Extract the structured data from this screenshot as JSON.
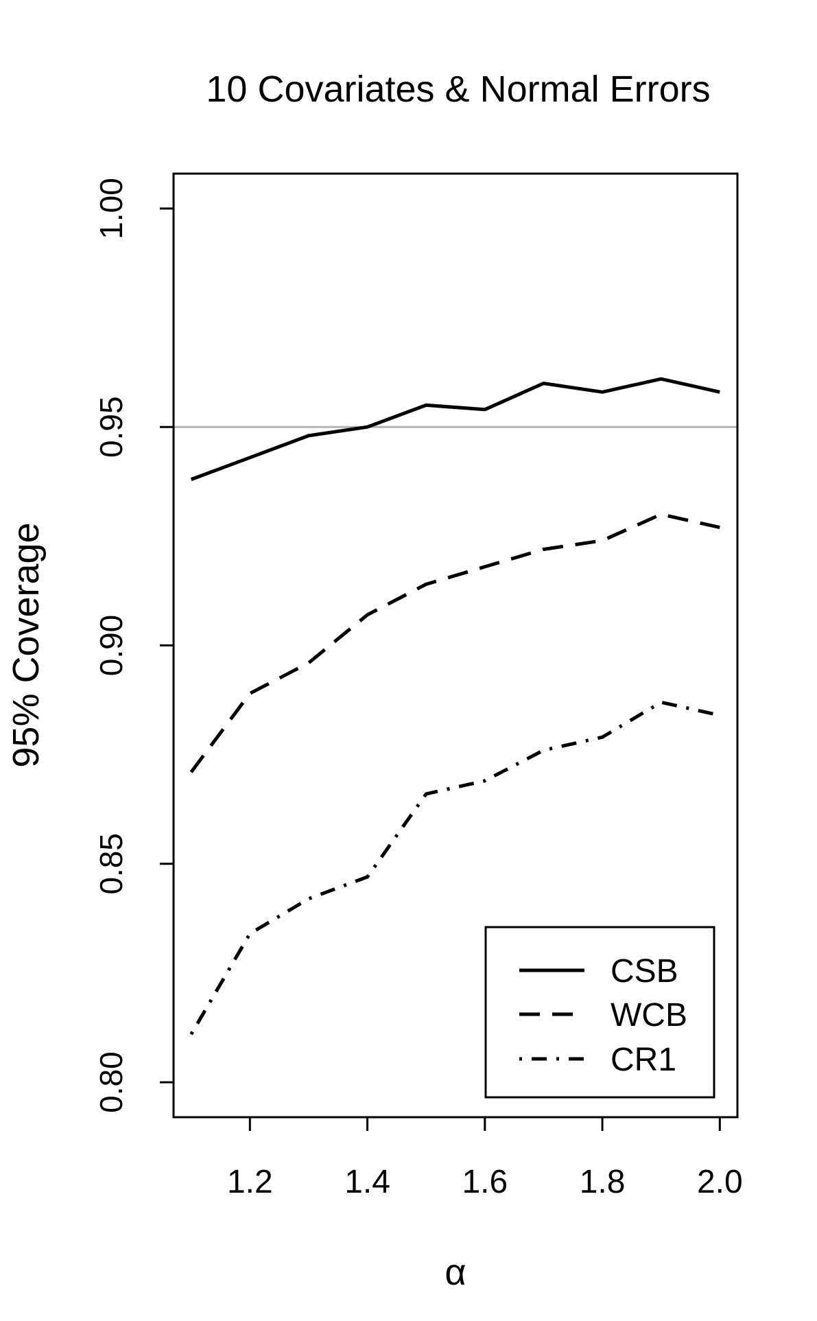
{
  "chart_data": {
    "type": "line",
    "title": "10 Covariates & Normal Errors",
    "xlabel": "α",
    "ylabel": "95% Coverage",
    "xlim": [
      1.07,
      2.03
    ],
    "ylim": [
      0.792,
      1.008
    ],
    "xticks": [
      1.2,
      1.4,
      1.6,
      1.8,
      2.0
    ],
    "xtick_labels": [
      "1.2",
      "1.4",
      "1.6",
      "1.8",
      "2.0"
    ],
    "yticks": [
      0.8,
      0.85,
      0.9,
      0.95,
      1.0
    ],
    "ytick_labels": [
      "0.80",
      "0.85",
      "0.90",
      "0.95",
      "1.00"
    ],
    "reference_line": {
      "y": 0.95,
      "color": "#b4b4b4"
    },
    "grid": false,
    "legend_position": "bottom-right",
    "x": [
      1.1,
      1.2,
      1.3,
      1.4,
      1.5,
      1.6,
      1.7,
      1.8,
      1.9,
      2.0
    ],
    "series": [
      {
        "name": "CSB",
        "line_style": "solid",
        "color": "#000000",
        "values": [
          0.938,
          0.943,
          0.948,
          0.95,
          0.955,
          0.954,
          0.96,
          0.958,
          0.961,
          0.958
        ]
      },
      {
        "name": "WCB",
        "line_style": "dashed",
        "color": "#000000",
        "values": [
          0.871,
          0.889,
          0.896,
          0.907,
          0.914,
          0.918,
          0.922,
          0.924,
          0.93,
          0.927
        ]
      },
      {
        "name": "CR1",
        "line_style": "dotdash",
        "color": "#000000",
        "values": [
          0.811,
          0.834,
          0.842,
          0.847,
          0.866,
          0.869,
          0.876,
          0.879,
          0.887,
          0.884
        ]
      }
    ]
  }
}
